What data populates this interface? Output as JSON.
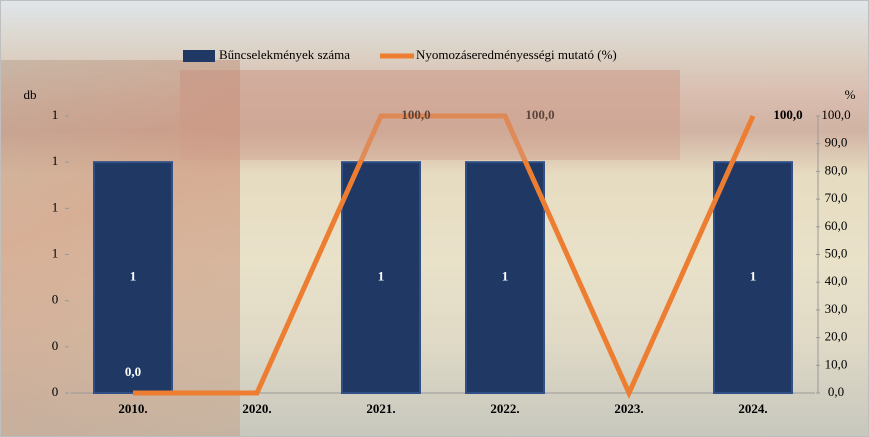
{
  "chart_data": {
    "type": "bar",
    "categories": [
      "2010.",
      "2020.",
      "2021.",
      "2022.",
      "2023.",
      "2024."
    ],
    "y_label": "db",
    "y2_label": "%",
    "series": [
      {
        "name": "Bűncselekmények száma",
        "type": "bar",
        "color": "#1f3864",
        "values": [
          1,
          null,
          1,
          1,
          null,
          1
        ]
      },
      {
        "name": "Nyomozáseredményességi mutató (%)",
        "type": "line",
        "axis": "y2",
        "color": "#ed7d31",
        "values": [
          0,
          0,
          100,
          100,
          0,
          100
        ],
        "value_labels": [
          "0,0",
          null,
          "100,0",
          "100,0",
          null,
          "100,0"
        ]
      }
    ],
    "ylim": [
      0,
      1.2
    ],
    "yticks": [
      0,
      {
        "value": 0.2,
        "label": "0"
      },
      {
        "value": 0.4,
        "label": "0"
      },
      {
        "value": 0.6,
        "label": "1"
      },
      {
        "value": 0.8,
        "label": "1"
      },
      1,
      {
        "value": 1.2,
        "label": "1"
      }
    ],
    "y2lim": [
      0,
      100
    ],
    "y2ticks": [
      {
        "value": 0,
        "label": "0,0"
      },
      {
        "value": 10,
        "label": "10,0"
      },
      {
        "value": 20,
        "label": "20,0"
      },
      {
        "value": 30,
        "label": "30,0"
      },
      {
        "value": 40,
        "label": "40,0"
      },
      {
        "value": 50,
        "label": "50,0"
      },
      {
        "value": 60,
        "label": "60,0"
      },
      {
        "value": 70,
        "label": "70,0"
      },
      {
        "value": 80,
        "label": "80,0"
      },
      {
        "value": 90,
        "label": "90,0"
      },
      {
        "value": 100,
        "label": "100,0"
      }
    ],
    "legend": "top"
  }
}
